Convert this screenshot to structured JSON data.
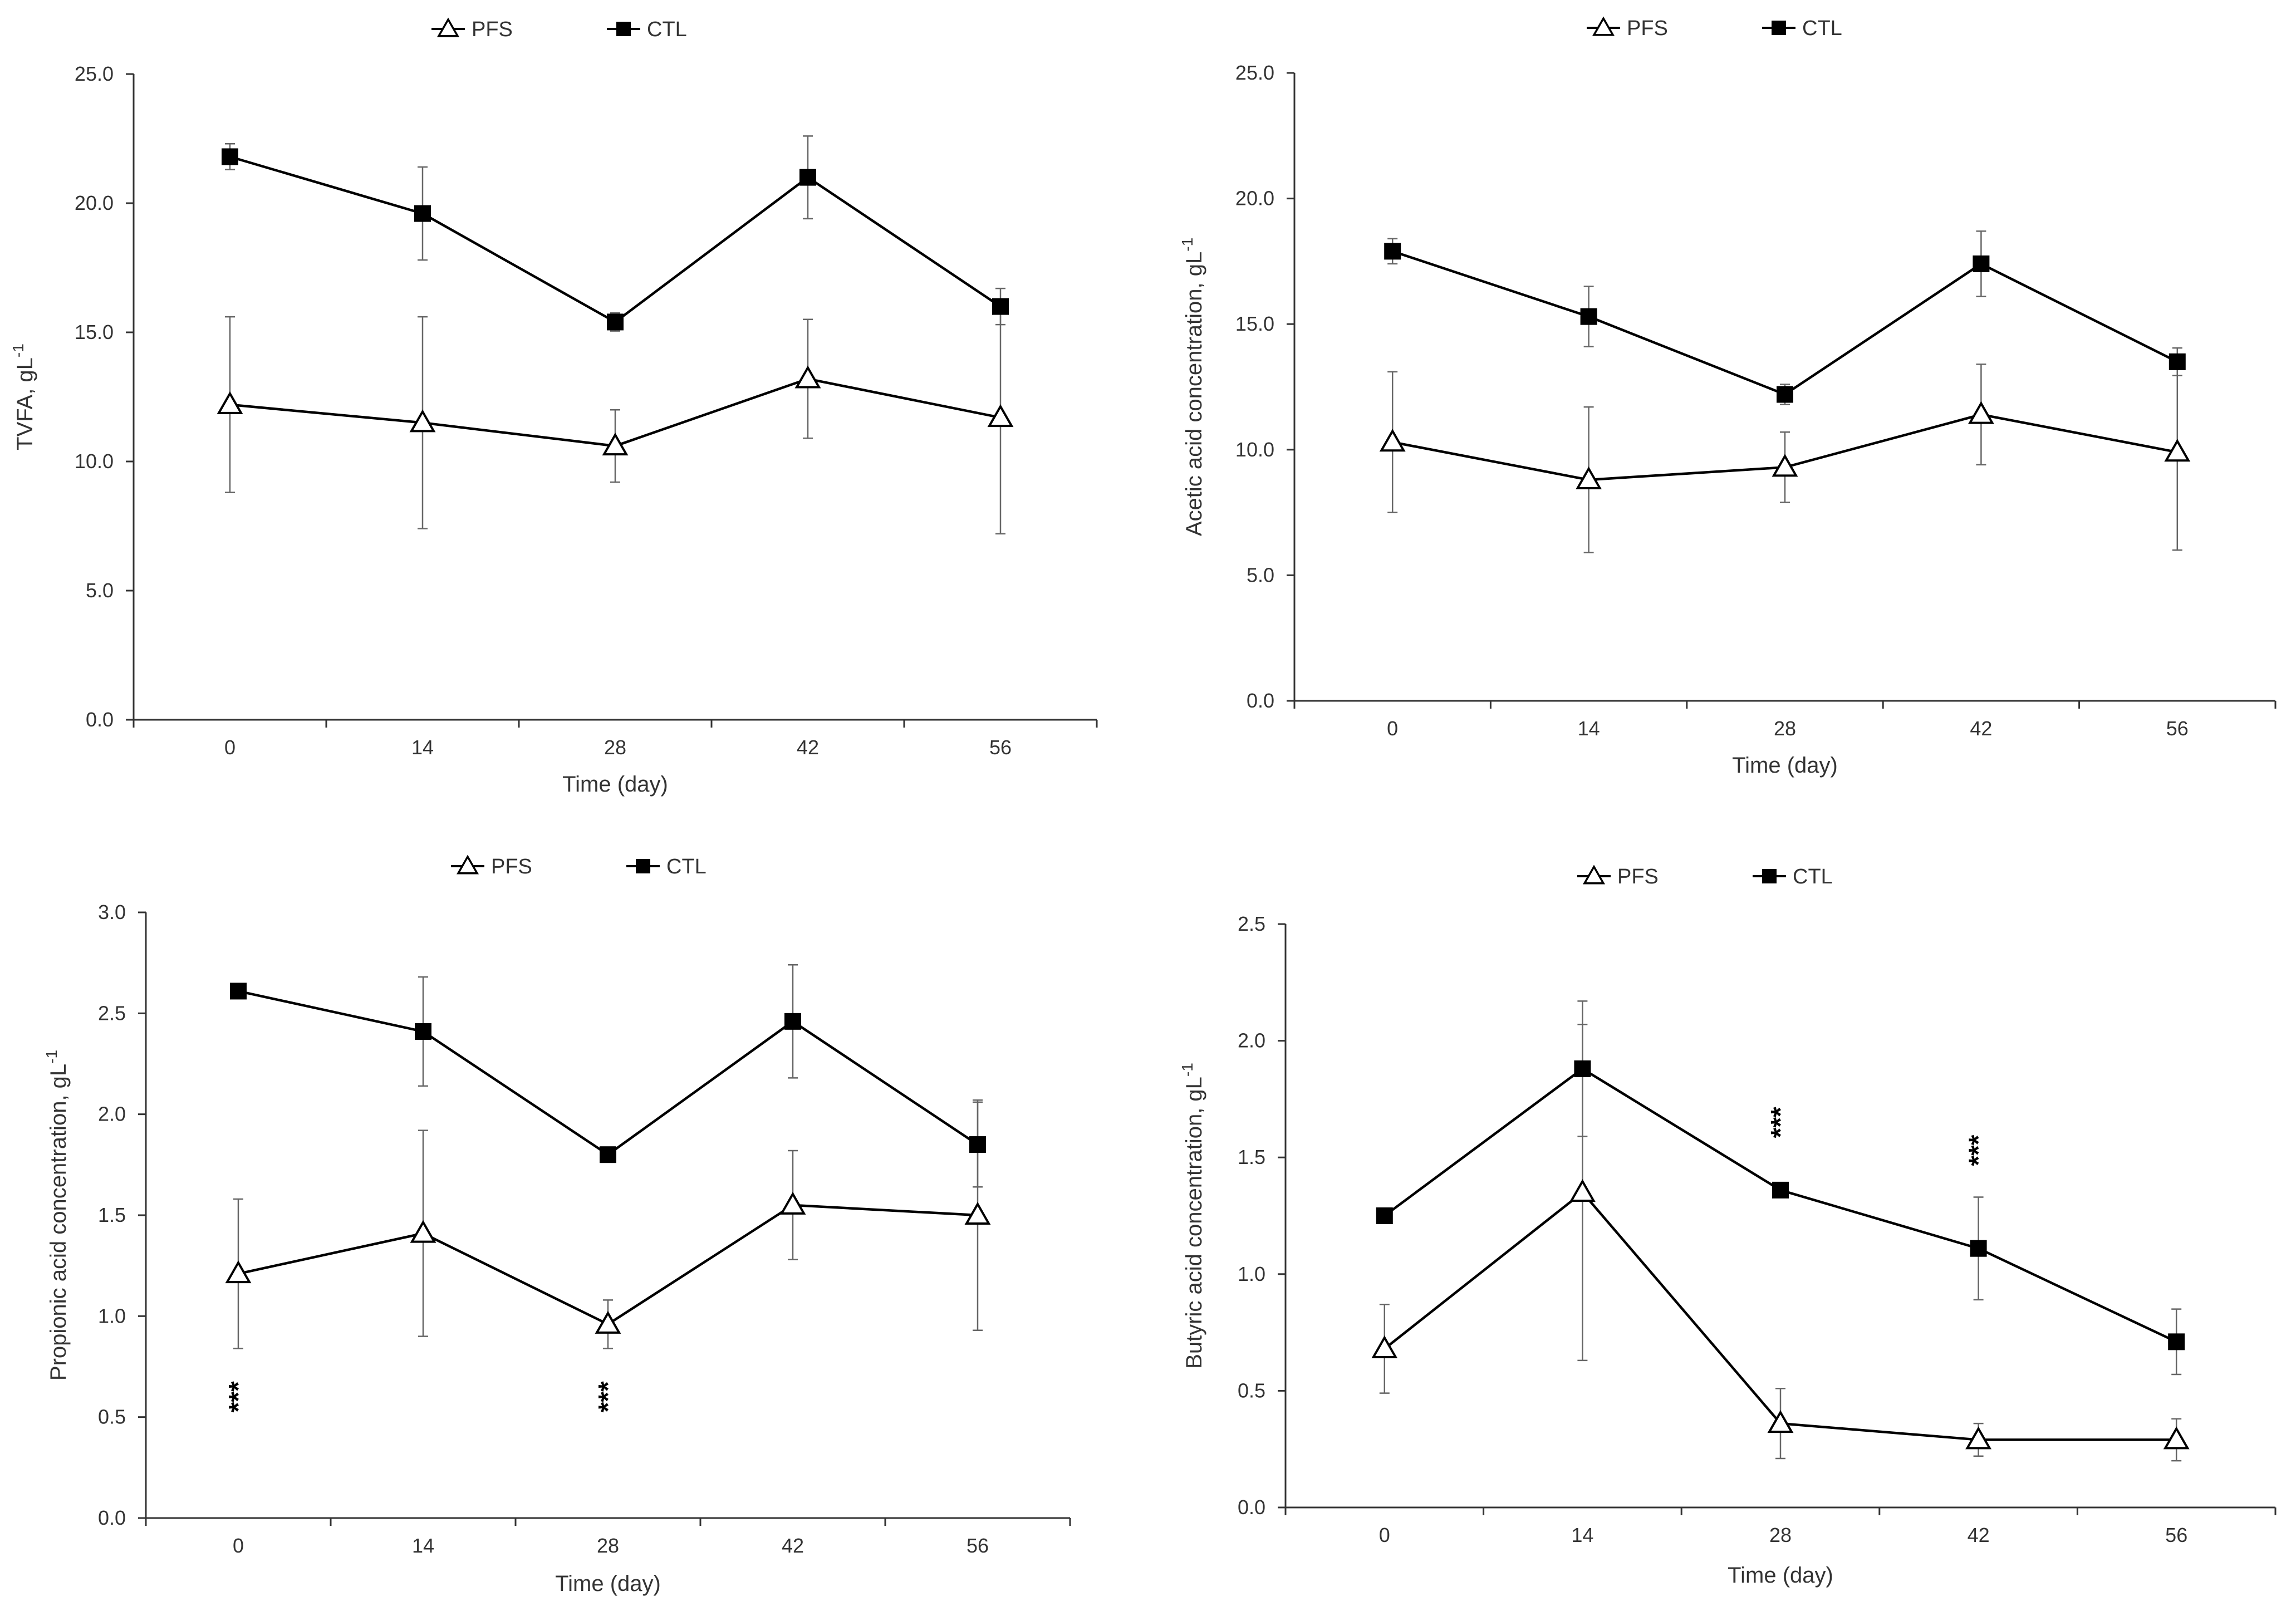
{
  "chart_data": [
    {
      "id": "tvfa",
      "type": "line",
      "title": "",
      "xlabel": "Time (day)",
      "ylabel": "TVFA, gL",
      "ylabel_sup": "-1",
      "categories": [
        "0",
        "14",
        "28",
        "42",
        "56"
      ],
      "ylim": [
        0,
        25
      ],
      "yticks": [
        "0.0",
        "5.0",
        "10.0",
        "15.0",
        "20.0",
        "25.0"
      ],
      "grid": false,
      "legend": "top",
      "series": [
        {
          "name": "PFS",
          "marker": "open-triangle",
          "values": [
            12.2,
            11.5,
            10.6,
            13.2,
            11.7
          ],
          "err": [
            3.4,
            4.1,
            1.4,
            2.3,
            4.5
          ]
        },
        {
          "name": "CTL",
          "marker": "filled-square",
          "values": [
            21.8,
            19.6,
            15.4,
            21.0,
            16.0
          ],
          "err": [
            0.5,
            1.8,
            0.35,
            1.6,
            0.7
          ]
        }
      ],
      "annotations": []
    },
    {
      "id": "acetic",
      "type": "line",
      "title": "",
      "xlabel": "Time (day)",
      "ylabel": "Acetic acid concentration, gL",
      "ylabel_sup": "-1",
      "categories": [
        "0",
        "14",
        "28",
        "42",
        "56"
      ],
      "ylim": [
        0,
        25
      ],
      "yticks": [
        "0.0",
        "5.0",
        "10.0",
        "15.0",
        "20.0",
        "25.0"
      ],
      "grid": false,
      "legend": "top",
      "series": [
        {
          "name": "PFS",
          "marker": "open-triangle",
          "values": [
            10.3,
            8.8,
            9.3,
            11.4,
            9.9
          ],
          "err": [
            2.8,
            2.9,
            1.4,
            2.0,
            3.9
          ]
        },
        {
          "name": "CTL",
          "marker": "filled-square",
          "values": [
            17.9,
            15.3,
            12.2,
            17.4,
            13.5
          ],
          "err": [
            0.5,
            1.2,
            0.4,
            1.3,
            0.55
          ]
        }
      ],
      "annotations": []
    },
    {
      "id": "propionic",
      "type": "line",
      "title": "",
      "xlabel": "Time (day)",
      "ylabel": "Propionic acid concentration, gL",
      "ylabel_sup": "-1",
      "categories": [
        "0",
        "14",
        "28",
        "42",
        "56"
      ],
      "ylim": [
        0,
        3
      ],
      "yticks": [
        "0.0",
        "0.5",
        "1.0",
        "1.5",
        "2.0",
        "2.5",
        "3.0"
      ],
      "grid": false,
      "legend": "top",
      "series": [
        {
          "name": "PFS",
          "marker": "open-triangle",
          "values": [
            1.21,
            1.41,
            0.96,
            1.55,
            1.5
          ],
          "err": [
            0.37,
            0.51,
            0.12,
            0.27,
            0.57
          ]
        },
        {
          "name": "CTL",
          "marker": "filled-square",
          "values": [
            2.61,
            2.41,
            1.8,
            2.46,
            1.85
          ],
          "err": [
            0.0,
            0.27,
            0.0,
            0.28,
            0.21
          ]
        }
      ],
      "annotations": [
        {
          "text": "***",
          "x": "0",
          "y": 0.6
        },
        {
          "text": "***",
          "x": "28",
          "y": 0.6
        }
      ]
    },
    {
      "id": "butyric",
      "type": "line",
      "title": "",
      "xlabel": "Time (day)",
      "ylabel": "Butyric acid concentration, gL",
      "ylabel_sup": "-1",
      "categories": [
        "0",
        "14",
        "28",
        "42",
        "56"
      ],
      "ylim": [
        0,
        2.5
      ],
      "yticks": [
        "0.0",
        "0.5",
        "1.0",
        "1.5",
        "2.0",
        "2.5"
      ],
      "grid": false,
      "legend": "top",
      "series": [
        {
          "name": "PFS",
          "marker": "open-triangle",
          "values": [
            0.68,
            1.35,
            0.36,
            0.29,
            0.29
          ],
          "err": [
            0.19,
            0.72,
            0.15,
            0.07,
            0.09
          ]
        },
        {
          "name": "CTL",
          "marker": "filled-square",
          "values": [
            1.25,
            1.88,
            1.36,
            1.11,
            0.71
          ],
          "err": [
            0.0,
            0.29,
            0.0,
            0.22,
            0.14
          ]
        }
      ],
      "annotations": [
        {
          "text": "***",
          "x": "28",
          "y": 1.65
        },
        {
          "text": "***",
          "x": "42",
          "y": 1.53
        }
      ]
    }
  ]
}
